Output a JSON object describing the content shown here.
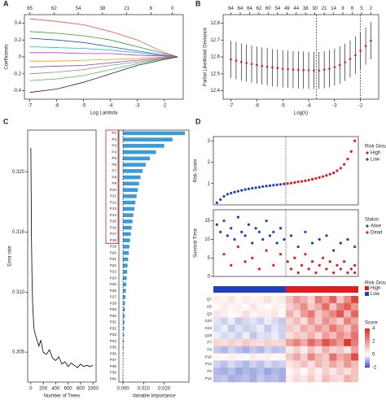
{
  "chart_data": [
    {
      "type": "line",
      "panel": "A",
      "xlabel": "Log Lambda",
      "ylabel": "Coefficients",
      "x": [
        -7,
        -6,
        -5,
        -4,
        -3,
        -2,
        -1.5
      ],
      "xlim": [
        -7.2,
        -1.3
      ],
      "xticks": [
        -7,
        -6,
        -5,
        -4,
        -3,
        -2
      ],
      "xticks_top": [
        {
          "value": -7,
          "label": "65"
        },
        {
          "value": -6.1,
          "label": "62"
        },
        {
          "value": -5.2,
          "label": "54"
        },
        {
          "value": -4.3,
          "label": "38"
        },
        {
          "value": -3.4,
          "label": "21"
        },
        {
          "value": -2.5,
          "label": "6"
        },
        {
          "value": -1.7,
          "label": "0"
        }
      ],
      "ylim": [
        -0.5,
        0.5
      ],
      "yticks": [
        -0.4,
        -0.2,
        0,
        0.2,
        0.4
      ],
      "series": [
        {
          "color": "#e8504a",
          "values": [
            0.45,
            0.42,
            0.38,
            0.3,
            0.2,
            0.05,
            0
          ]
        },
        {
          "color": "#2ca02c",
          "values": [
            0.3,
            0.28,
            0.25,
            0.2,
            0.12,
            0.04,
            0
          ]
        },
        {
          "color": "#1f4fd8",
          "values": [
            0.22,
            0.2,
            0.17,
            0.12,
            0.07,
            0.02,
            0
          ]
        },
        {
          "color": "#17becf",
          "values": [
            0.12,
            0.11,
            0.1,
            0.08,
            0.05,
            0.01,
            0
          ]
        },
        {
          "color": "#d62ad6",
          "values": [
            0.05,
            0.05,
            0.04,
            0.04,
            0.02,
            0.01,
            0
          ]
        },
        {
          "color": "#ff9900",
          "values": [
            -0.05,
            -0.05,
            -0.04,
            -0.03,
            -0.02,
            0,
            0
          ]
        },
        {
          "color": "#7b3fbf",
          "values": [
            -0.12,
            -0.11,
            -0.1,
            -0.07,
            -0.04,
            -0.01,
            0
          ]
        },
        {
          "color": "#888888",
          "values": [
            -0.2,
            -0.18,
            -0.15,
            -0.1,
            -0.06,
            -0.02,
            0
          ]
        },
        {
          "color": "#55c255",
          "values": [
            -0.28,
            -0.26,
            -0.22,
            -0.15,
            -0.08,
            -0.02,
            0
          ]
        },
        {
          "color": "#222222",
          "values": [
            -0.42,
            -0.38,
            -0.3,
            -0.2,
            -0.1,
            -0.03,
            0
          ]
        }
      ]
    },
    {
      "type": "errorbar",
      "panel": "B",
      "xlabel": "Log(λ)",
      "ylabel": "Partial Likelihood Deviance",
      "color": "#e41a1c",
      "x": [
        -7,
        -6.8,
        -6.6,
        -6.4,
        -6.2,
        -6,
        -5.8,
        -5.6,
        -5.4,
        -5.2,
        -5,
        -4.8,
        -4.6,
        -4.4,
        -4.2,
        -4,
        -3.8,
        -3.6,
        -3.4,
        -3.2,
        -3,
        -2.8,
        -2.6,
        -2.4,
        -2.2,
        -2,
        -1.8,
        -1.6
      ],
      "values": [
        12.585,
        12.578,
        12.57,
        12.564,
        12.558,
        12.552,
        12.546,
        12.542,
        12.537,
        12.534,
        12.53,
        12.527,
        12.525,
        12.523,
        12.522,
        12.521,
        12.52,
        12.52,
        12.524,
        12.53,
        12.54,
        12.552,
        12.568,
        12.588,
        12.61,
        12.636,
        12.664,
        12.696
      ],
      "errors": [
        0.11,
        0.11,
        0.11,
        0.11,
        0.11,
        0.11,
        0.11,
        0.11,
        0.11,
        0.11,
        0.11,
        0.11,
        0.11,
        0.11,
        0.11,
        0.11,
        0.11,
        0.11,
        0.11,
        0.11,
        0.11,
        0.11,
        0.11,
        0.11,
        0.11,
        0.11,
        0.11,
        0.11
      ],
      "vlines": [
        -3.7,
        -2
      ],
      "xlim": [
        -7.3,
        -1.3
      ],
      "xticks": [
        -7,
        -6,
        -5,
        -4,
        -3,
        -2
      ],
      "xticks_top": [
        {
          "value": -7,
          "label": "64"
        },
        {
          "value": -6.64,
          "label": "64"
        },
        {
          "value": -6.28,
          "label": "64"
        },
        {
          "value": -5.92,
          "label": "62"
        },
        {
          "value": -5.56,
          "label": "60"
        },
        {
          "value": -5.2,
          "label": "54"
        },
        {
          "value": -4.84,
          "label": "49"
        },
        {
          "value": -4.48,
          "label": "44"
        },
        {
          "value": -4.12,
          "label": "38"
        },
        {
          "value": -3.76,
          "label": "30"
        },
        {
          "value": -3.4,
          "label": "21"
        },
        {
          "value": -3.04,
          "label": "14"
        },
        {
          "value": -2.68,
          "label": "8"
        },
        {
          "value": -2.32,
          "label": "6"
        },
        {
          "value": -1.96,
          "label": "5"
        },
        {
          "value": -1.6,
          "label": "2"
        }
      ],
      "ylim": [
        12.35,
        12.85
      ],
      "yticks": [
        12.4,
        12.5,
        12.6,
        12.7,
        12.8
      ]
    },
    {
      "type": "line",
      "panel": "C",
      "xlabel": "Number of Trees",
      "ylabel": "Error rate",
      "x": [
        1,
        10,
        20,
        30,
        40,
        50,
        70,
        100,
        130,
        160,
        200,
        250,
        300,
        350,
        400,
        450,
        500,
        550,
        600,
        650,
        700,
        750,
        800,
        850,
        900,
        950,
        1000
      ],
      "xlim": [
        -50,
        1050
      ],
      "xticks": [
        0,
        200,
        400,
        600,
        800,
        1000
      ],
      "ylim": [
        0.3025,
        0.3235
      ],
      "yticks": [
        0.305,
        {
          "value": 0.31,
          "label": "0.310"
        },
        0.315,
        {
          "value": 0.32,
          "label": "0.320"
        }
      ],
      "series": [
        {
          "color": "#000000",
          "values": [
            0.322,
            0.315,
            0.311,
            0.309,
            0.308,
            0.307,
            0.3065,
            0.306,
            0.3055,
            0.306,
            0.305,
            0.3048,
            0.3052,
            0.3045,
            0.3043,
            0.3046,
            0.304,
            0.3042,
            0.3038,
            0.3041,
            0.3039,
            0.3037,
            0.304,
            0.3038,
            0.3039,
            0.3038,
            0.3039
          ]
        }
      ]
    },
    {
      "type": "barh",
      "xlabel": "Variable Importance",
      "color": "#3a9bd9",
      "refline": 0,
      "refline_color": "#e41a1c",
      "highlight_count": 18,
      "categories": [
        "P1",
        "P2",
        "P3",
        "P4",
        "P5",
        "P6",
        "P7",
        "P8",
        "P9",
        "P10",
        "P11",
        "P12",
        "P13",
        "P14",
        "P15",
        "P16",
        "P17",
        "P18",
        "P19",
        "P20",
        "P21",
        "P22",
        "P23",
        "P24",
        "P25",
        "P26",
        "P27",
        "P28",
        "P29",
        "P30",
        "P31",
        "P32",
        "P33",
        "P34",
        "P35",
        "P36",
        "P37",
        "P38",
        "P39",
        "P40"
      ],
      "values": [
        0.03,
        0.024,
        0.02,
        0.016,
        0.013,
        0.011,
        0.0095,
        0.0085,
        0.0078,
        0.0072,
        0.0066,
        0.006,
        0.0055,
        0.005,
        0.0046,
        0.0042,
        0.0038,
        0.0034,
        0.0031,
        0.0028,
        0.0025,
        0.0022,
        0.002,
        0.0018,
        0.0016,
        0.0014,
        0.0012,
        0.001,
        0.0009,
        0.0008,
        0.0007,
        0.0006,
        0.0005,
        0.0004,
        0.0003,
        0.0002,
        0.0001,
        0,
        -0.0001,
        -0.0002
      ],
      "xlim": [
        -0.002,
        0.032
      ],
      "xticks": [
        {
          "value": 0,
          "label": "0.000"
        },
        {
          "value": 0.01,
          "label": "0.010"
        },
        {
          "value": 0.02,
          "label": "0.020"
        }
      ]
    },
    {
      "type": "scatter",
      "panel": "D",
      "ylabel": "Risk Score",
      "legend_title": "Risk Group",
      "vline": 20.5,
      "xlim": [
        0,
        41
      ],
      "ylim": [
        0,
        3.2
      ],
      "yticks": [
        1,
        2,
        3
      ],
      "series": [
        {
          "name": "High",
          "color": "#e41a1c",
          "x": [
            21,
            22,
            23,
            24,
            25,
            26,
            27,
            28,
            29,
            30,
            31,
            32,
            33,
            34,
            35,
            36,
            37,
            38,
            39,
            40
          ],
          "values": [
            1.0,
            1.02,
            1.05,
            1.08,
            1.1,
            1.13,
            1.16,
            1.2,
            1.24,
            1.28,
            1.33,
            1.38,
            1.44,
            1.5,
            1.6,
            1.72,
            1.9,
            2.15,
            2.5,
            3.0
          ]
        },
        {
          "name": "Low",
          "color": "#1f3fbf",
          "x": [
            1,
            2,
            3,
            4,
            5,
            6,
            7,
            8,
            9,
            10,
            11,
            12,
            13,
            14,
            15,
            16,
            17,
            18,
            19,
            20
          ],
          "values": [
            0.1,
            0.25,
            0.4,
            0.5,
            0.55,
            0.6,
            0.64,
            0.68,
            0.72,
            0.75,
            0.78,
            0.8,
            0.83,
            0.86,
            0.88,
            0.9,
            0.92,
            0.94,
            0.96,
            0.98
          ]
        }
      ]
    },
    {
      "type": "scatter",
      "ylabel": "Survival Time",
      "legend_title": "Status",
      "vline": 20.5,
      "xlim": [
        0,
        41
      ],
      "ylim": [
        0,
        18
      ],
      "yticks": [
        0,
        5,
        10,
        15
      ],
      "series": [
        {
          "name": "Alive",
          "color": "#1f3fbf",
          "x": [
            1,
            2,
            3,
            4,
            5,
            6,
            7,
            8,
            9,
            10,
            11,
            12,
            13,
            14,
            15,
            16,
            17,
            18,
            19,
            20,
            22,
            24,
            26,
            28,
            30,
            32,
            34,
            36,
            38,
            40
          ],
          "values": [
            14,
            12,
            15,
            11,
            13,
            10,
            16,
            12,
            11,
            14,
            9,
            13,
            12,
            10,
            15,
            11,
            12,
            9,
            13,
            10,
            11,
            8,
            12,
            9,
            10,
            11,
            7,
            9,
            10,
            8
          ]
        },
        {
          "name": "Dead",
          "color": "#e41a1c",
          "x": [
            3,
            5,
            7,
            9,
            11,
            13,
            15,
            17,
            19,
            21,
            22,
            23,
            24,
            25,
            26,
            27,
            28,
            29,
            30,
            31,
            32,
            33,
            34,
            35,
            36,
            37,
            38,
            39,
            40,
            40
          ],
          "values": [
            6,
            3,
            8,
            4,
            5,
            2,
            7,
            3,
            6,
            4,
            2,
            5,
            1,
            3,
            6,
            2,
            4,
            1,
            3,
            5,
            2,
            4,
            1,
            3,
            2,
            4,
            1,
            2,
            3,
            1
          ]
        }
      ]
    },
    {
      "type": "heatmap",
      "legend_title": "Score",
      "group_legend_title": "Risk Group",
      "groups": [
        {
          "name": "Low",
          "color": "#1f3fbf",
          "count": 10
        },
        {
          "name": "High",
          "color": "#e41a1c",
          "count": 10
        }
      ],
      "clim": [
        -2,
        4
      ],
      "cticks": [
        4,
        2,
        0,
        -2
      ],
      "colors": [
        "#3b4cc0",
        "#ffffff",
        "#d73027"
      ],
      "rows": [
        "Q7",
        "G5",
        "Q3",
        "G20",
        "G22",
        "Q18",
        "P7",
        "P9",
        "P16",
        "P14",
        "P2",
        "P12"
      ],
      "values": [
        [
          0.3,
          0.2,
          0.5,
          0.1,
          0.4,
          0.2,
          0.3,
          0.6,
          0.2,
          0.4,
          1.2,
          2.0,
          1.5,
          0.8,
          2.5,
          1.8,
          3.0,
          1.1,
          2.2,
          3.6
        ],
        [
          0.1,
          0.4,
          0.2,
          0.3,
          0.1,
          0.5,
          0.2,
          0.1,
          0.3,
          0.2,
          0.9,
          1.4,
          2.2,
          1.0,
          1.6,
          2.8,
          1.2,
          2.4,
          3.1,
          2.0
        ],
        [
          0.5,
          0.3,
          0.1,
          0.2,
          0.6,
          0.2,
          0.4,
          0.3,
          0.5,
          0.1,
          1.5,
          0.8,
          1.9,
          2.6,
          1.1,
          1.7,
          2.3,
          3.2,
          1.4,
          2.9
        ],
        [
          -0.3,
          -0.5,
          -0.2,
          -0.6,
          -0.4,
          -0.3,
          -0.5,
          -0.2,
          -0.4,
          -0.6,
          0.8,
          1.3,
          0.6,
          1.9,
          1.0,
          2.1,
          1.5,
          0.9,
          2.4,
          1.7
        ],
        [
          -0.4,
          -0.2,
          -0.6,
          -0.3,
          -0.5,
          -0.4,
          -0.2,
          -0.6,
          -0.3,
          -0.5,
          1.0,
          0.7,
          1.6,
          1.2,
          2.0,
          1.4,
          2.6,
          1.8,
          1.1,
          2.3
        ],
        [
          -0.2,
          -0.4,
          -0.3,
          -0.5,
          -0.2,
          -0.6,
          -0.3,
          -0.4,
          -0.2,
          -0.5,
          0.6,
          1.1,
          0.9,
          1.5,
          0.8,
          1.9,
          1.3,
          2.2,
          1.6,
          2.7
        ],
        [
          0.8,
          0.6,
          0.9,
          0.7,
          1.0,
          0.8,
          0.6,
          0.9,
          0.7,
          0.8,
          1.8,
          2.4,
          1.6,
          2.9,
          2.1,
          3.3,
          2.6,
          1.9,
          3.8,
          2.5
        ],
        [
          -0.6,
          -0.8,
          -0.5,
          -0.7,
          -0.9,
          -0.6,
          -0.8,
          -0.5,
          -0.7,
          -0.6,
          0.4,
          0.9,
          0.3,
          1.2,
          0.6,
          1.5,
          0.8,
          1.1,
          0.5,
          1.8
        ],
        [
          0.2,
          0.1,
          0.3,
          0.2,
          0.1,
          0.4,
          0.2,
          0.3,
          0.1,
          0.2,
          1.1,
          1.7,
          0.9,
          2.3,
          1.4,
          1.0,
          2.7,
          1.6,
          2.0,
          3.4
        ],
        [
          -0.5,
          -0.7,
          -0.4,
          -0.6,
          -0.8,
          -0.5,
          -0.7,
          -0.4,
          -0.6,
          -0.5,
          0.5,
          0.8,
          1.2,
          0.6,
          1.4,
          0.9,
          1.7,
          1.1,
          2.0,
          1.3
        ],
        [
          -0.8,
          -0.9,
          -0.7,
          -1.0,
          -0.8,
          -0.9,
          -0.7,
          -1.0,
          -0.8,
          -0.9,
          0.2,
          0.5,
          0.1,
          0.7,
          0.3,
          0.9,
          0.4,
          1.0,
          0.6,
          1.2
        ],
        [
          -0.7,
          -0.6,
          -0.9,
          -0.8,
          -0.7,
          -0.9,
          -0.6,
          -0.8,
          -0.7,
          -0.9,
          0.3,
          0.7,
          0.5,
          1.0,
          0.4,
          1.3,
          0.8,
          0.6,
          1.5,
          1.1
        ]
      ]
    }
  ]
}
